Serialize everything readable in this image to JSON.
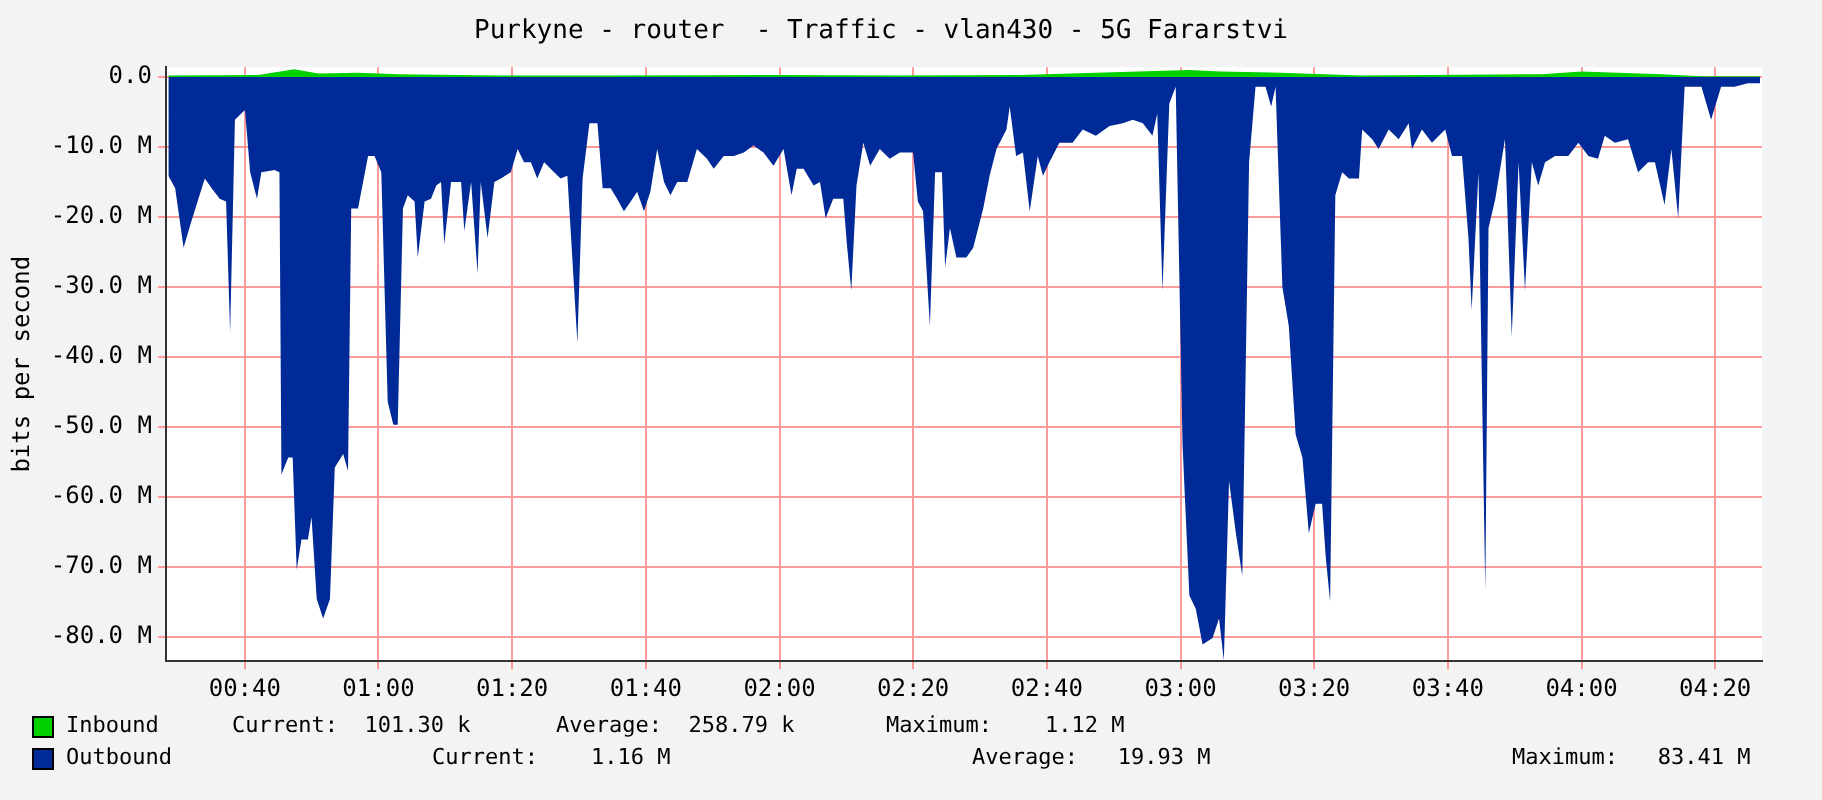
{
  "chart_data": {
    "type": "area",
    "title": "Purkyne - router  - Traffic - vlan430 - 5G Fararstvi",
    "ylabel": "bits per second",
    "xlim": [
      0.47,
      4.45
    ],
    "ylim": [
      -83.5,
      1.4
    ],
    "xticks": [
      {
        "value": 0.6667,
        "label": "00:40"
      },
      {
        "value": 1,
        "label": "01:00"
      },
      {
        "value": 1.3333,
        "label": "01:20"
      },
      {
        "value": 1.6667,
        "label": "01:40"
      },
      {
        "value": 2,
        "label": "02:00"
      },
      {
        "value": 2.3333,
        "label": "02:20"
      },
      {
        "value": 2.6667,
        "label": "02:40"
      },
      {
        "value": 3,
        "label": "03:00"
      },
      {
        "value": 3.3333,
        "label": "03:20"
      },
      {
        "value": 3.6667,
        "label": "03:40"
      },
      {
        "value": 4,
        "label": "04:00"
      },
      {
        "value": 4.3333,
        "label": "04:20"
      }
    ],
    "yticks": [
      {
        "value": 0,
        "label": "0.0"
      },
      {
        "value": -10,
        "label": "-10.0 M"
      },
      {
        "value": -20,
        "label": "-20.0 M"
      },
      {
        "value": -30,
        "label": "-30.0 M"
      },
      {
        "value": -40,
        "label": "-40.0 M"
      },
      {
        "value": -50,
        "label": "-50.0 M"
      },
      {
        "value": -60,
        "label": "-60.0 M"
      },
      {
        "value": -70,
        "label": "-70.0 M"
      },
      {
        "value": -80,
        "label": "-80.0 M"
      }
    ],
    "grid": true,
    "legend": "bottom",
    "series": [
      {
        "name": "Inbound",
        "color": "#00cf00",
        "x": [
          0.476,
          0.7,
          0.79,
          0.85,
          0.95,
          1.05,
          1.3,
          1.6,
          2.0,
          2.3,
          2.6,
          3.02,
          3.1,
          3.25,
          3.45,
          3.9,
          4.0,
          4.2,
          4.3,
          4.445
        ],
        "values": [
          0.2,
          0.3,
          1.1,
          0.5,
          0.6,
          0.4,
          0.2,
          0.2,
          0.3,
          0.2,
          0.3,
          1.0,
          0.8,
          0.6,
          0.2,
          0.4,
          0.8,
          0.4,
          0.1,
          0.1
        ]
      },
      {
        "name": "Outbound",
        "color": "#002a97",
        "x": [
          0.476,
          0.493,
          0.514,
          0.531,
          0.551,
          0.567,
          0.584,
          0.604,
          0.62,
          0.63,
          0.642,
          0.667,
          0.68,
          0.697,
          0.708,
          0.741,
          0.753,
          0.758,
          0.775,
          0.786,
          0.796,
          0.808,
          0.824,
          0.833,
          0.846,
          0.862,
          0.879,
          0.891,
          0.912,
          0.924,
          0.932,
          0.949,
          0.974,
          0.99,
          1.007,
          1.023,
          1.037,
          1.048,
          1.061,
          1.073,
          1.09,
          1.098,
          1.115,
          1.131,
          1.144,
          1.156,
          1.164,
          1.181,
          1.206,
          1.214,
          1.231,
          1.247,
          1.255,
          1.272,
          1.289,
          1.305,
          1.33,
          1.347,
          1.363,
          1.38,
          1.396,
          1.413,
          1.438,
          1.454,
          1.471,
          1.496,
          1.509,
          1.526,
          1.546,
          1.559,
          1.579,
          1.595,
          1.612,
          1.629,
          1.645,
          1.662,
          1.678,
          1.695,
          1.712,
          1.728,
          1.745,
          1.77,
          1.794,
          1.819,
          1.836,
          1.861,
          1.886,
          1.911,
          1.935,
          1.96,
          1.985,
          2.01,
          2.03,
          2.043,
          2.06,
          2.085,
          2.101,
          2.115,
          2.134,
          2.159,
          2.168,
          2.179,
          2.192,
          2.209,
          2.226,
          2.25,
          2.275,
          2.3,
          2.333,
          2.345,
          2.358,
          2.375,
          2.388,
          2.405,
          2.413,
          2.425,
          2.441,
          2.466,
          2.483,
          2.508,
          2.524,
          2.541,
          2.566,
          2.574,
          2.59,
          2.607,
          2.624,
          2.644,
          2.657,
          2.673,
          2.698,
          2.731,
          2.756,
          2.789,
          2.823,
          2.856,
          2.881,
          2.906,
          2.93,
          2.942,
          2.955,
          2.972,
          2.988,
          3.005,
          3.022,
          3.038,
          3.055,
          3.08,
          3.096,
          3.108,
          3.121,
          3.138,
          3.154,
          3.171,
          3.187,
          3.212,
          3.226,
          3.237,
          3.254,
          3.27,
          3.287,
          3.304,
          3.32,
          3.337,
          3.353,
          3.362,
          3.373,
          3.386,
          3.403,
          3.42,
          3.445,
          3.453,
          3.478,
          3.494,
          3.519,
          3.544,
          3.569,
          3.577,
          3.602,
          3.627,
          3.66,
          3.677,
          3.702,
          3.718,
          3.726,
          3.743,
          3.76,
          3.768,
          3.785,
          3.809,
          3.826,
          3.843,
          3.859,
          3.876,
          3.892,
          3.909,
          3.934,
          3.967,
          3.992,
          4.017,
          4.041,
          4.058,
          4.083,
          4.116,
          4.141,
          4.166,
          4.183,
          4.207,
          4.224,
          4.241,
          4.257,
          4.299,
          4.323,
          4.348,
          4.381,
          4.415,
          4.445
        ],
        "values": [
          -14.1,
          -15.9,
          -24.4,
          -21.1,
          -17.4,
          -14.5,
          -15.9,
          -17.4,
          -17.8,
          -36.6,
          -6.1,
          -4.7,
          -13.6,
          -17.4,
          -13.6,
          -13.3,
          -13.6,
          -56.8,
          -54.4,
          -54.4,
          -70.4,
          -66.1,
          -66.1,
          -62.9,
          -74.6,
          -77.4,
          -74.6,
          -55.8,
          -53.9,
          -56.3,
          -18.8,
          -18.8,
          -11.3,
          -11.3,
          -13.6,
          -46.4,
          -49.7,
          -49.7,
          -18.8,
          -16.9,
          -17.8,
          -25.8,
          -17.8,
          -17.4,
          -15.5,
          -15.0,
          -23.9,
          -15.0,
          -15.0,
          -22.0,
          -15.0,
          -28.1,
          -15.0,
          -23.0,
          -15.0,
          -14.5,
          -13.6,
          -10.3,
          -12.2,
          -12.2,
          -14.5,
          -12.2,
          -13.6,
          -14.5,
          -14.1,
          -38.0,
          -14.5,
          -6.6,
          -6.6,
          -15.9,
          -15.9,
          -17.4,
          -19.2,
          -17.8,
          -16.4,
          -19.2,
          -16.4,
          -10.3,
          -15.0,
          -16.9,
          -15.0,
          -15.0,
          -10.3,
          -11.7,
          -13.1,
          -11.3,
          -11.3,
          -10.8,
          -9.8,
          -10.8,
          -12.7,
          -10.3,
          -16.9,
          -13.1,
          -13.1,
          -15.5,
          -15.0,
          -20.2,
          -17.4,
          -17.4,
          -23.9,
          -30.5,
          -15.5,
          -9.4,
          -12.7,
          -10.3,
          -11.7,
          -10.8,
          -10.8,
          -17.8,
          -19.2,
          -35.6,
          -13.6,
          -13.6,
          -27.2,
          -21.6,
          -25.8,
          -25.8,
          -24.4,
          -18.8,
          -14.1,
          -10.3,
          -7.5,
          -4.2,
          -11.3,
          -10.8,
          -19.2,
          -11.3,
          -14.1,
          -12.2,
          -9.4,
          -9.4,
          -7.5,
          -8.4,
          -7.0,
          -6.6,
          -6.1,
          -6.6,
          -8.4,
          -5.2,
          -30.5,
          -3.8,
          -1.4,
          -52.5,
          -74.1,
          -76.0,
          -81.1,
          -80.2,
          -77.4,
          -83.4,
          -57.7,
          -65.2,
          -71.3,
          -12.2,
          -1.4,
          -1.4,
          -4.2,
          -1.4,
          -30.0,
          -35.6,
          -51.1,
          -54.4,
          -65.2,
          -61.0,
          -61.0,
          -68.5,
          -75.0,
          -16.9,
          -13.6,
          -14.5,
          -14.5,
          -7.5,
          -8.9,
          -10.3,
          -7.5,
          -8.9,
          -6.6,
          -10.3,
          -7.5,
          -9.4,
          -7.5,
          -11.3,
          -11.3,
          -23.0,
          -33.3,
          -13.6,
          -73.6,
          -21.6,
          -17.4,
          -8.9,
          -37.1,
          -12.2,
          -30.5,
          -12.2,
          -15.5,
          -12.2,
          -11.3,
          -11.3,
          -9.4,
          -11.3,
          -11.7,
          -8.4,
          -9.4,
          -8.9,
          -13.6,
          -12.2,
          -12.2,
          -18.3,
          -10.3,
          -20.2,
          -1.4,
          -1.4,
          -6.1,
          -1.4,
          -1.4,
          -0.9,
          -0.9
        ]
      }
    ],
    "annotations": [
      "Current:  101.30 k",
      "Average:  258.79 k",
      "Maximum:    1.12 M",
      "Current:    1.16 M",
      "Average:   19.93 M",
      "Maximum:   83.41 M"
    ]
  }
}
